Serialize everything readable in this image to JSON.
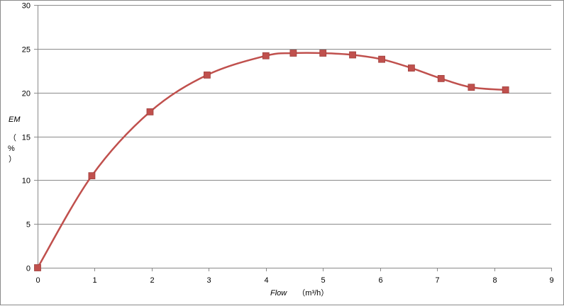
{
  "chart_data": {
    "type": "line",
    "title": "",
    "xlabel_name": "Flow",
    "xlabel_unit": "（m³/h）",
    "ylabel_name": "EM",
    "ylabel_unit_lines": [
      "（",
      "%",
      "）"
    ],
    "xlim": [
      0,
      9
    ],
    "ylim": [
      0,
      30
    ],
    "x_ticks": [
      "0",
      "1",
      "2",
      "3",
      "4",
      "5",
      "6",
      "7",
      "8",
      "9"
    ],
    "y_ticks": [
      "0",
      "5",
      "10",
      "15",
      "20",
      "25",
      "30"
    ],
    "grid": "horizontal",
    "legend": "none",
    "smooth": true,
    "series": [
      {
        "color": "#c0504d",
        "marker": "square",
        "x": [
          0,
          0.95,
          1.97,
          2.97,
          4.0,
          4.48,
          5.0,
          5.52,
          6.03,
          6.55,
          7.07,
          7.6,
          8.2
        ],
        "values": [
          0,
          10.5,
          17.8,
          22.0,
          24.2,
          24.5,
          24.5,
          24.3,
          23.8,
          22.8,
          21.6,
          20.6,
          20.3
        ]
      }
    ]
  }
}
